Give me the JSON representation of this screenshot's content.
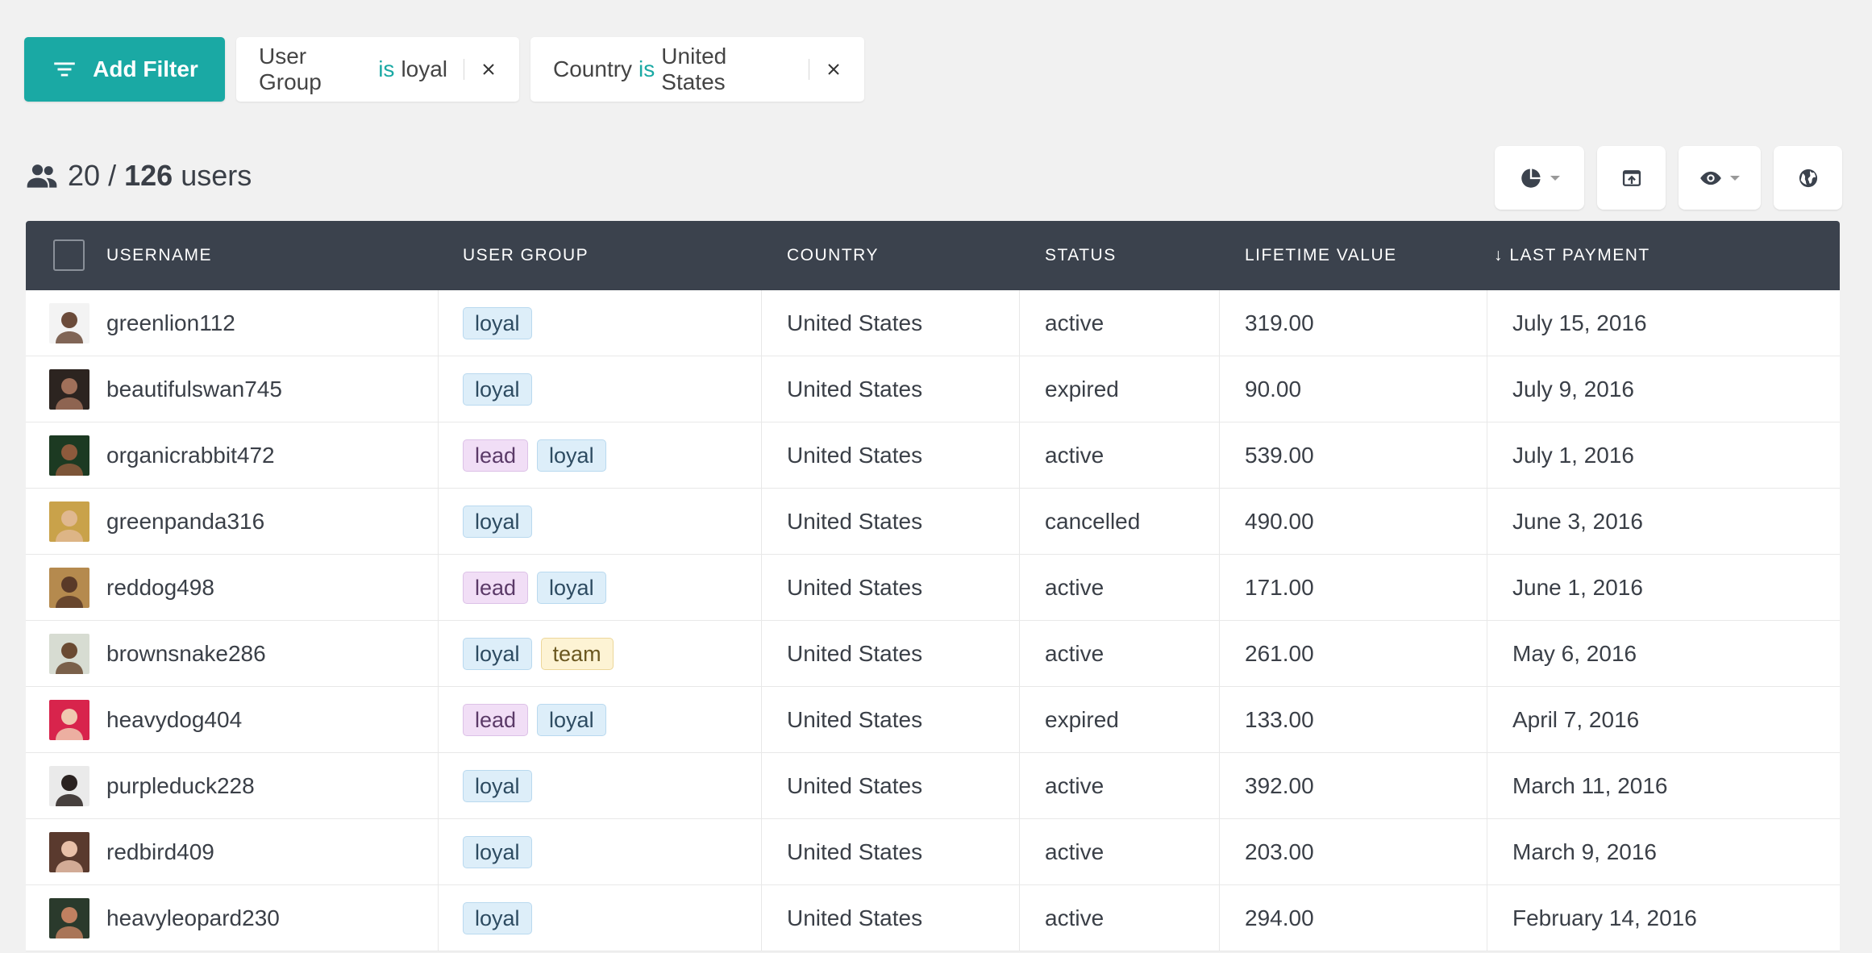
{
  "filters": {
    "add_label": "Add Filter",
    "chips": [
      {
        "field": "User Group",
        "op": "is",
        "value": "loyal"
      },
      {
        "field": "Country",
        "op": "is",
        "value": "United States"
      }
    ]
  },
  "count": {
    "shown": "20",
    "separator": "/",
    "total": "126",
    "unit": "users"
  },
  "toolbar": {
    "icons": [
      "pie-chart-icon",
      "export-icon",
      "eye-icon",
      "globe-icon"
    ]
  },
  "table": {
    "columns": {
      "username": "USERNAME",
      "group": "USER GROUP",
      "country": "COUNTRY",
      "status": "STATUS",
      "ltv": "LIFETIME VALUE",
      "payment": "↓ LAST PAYMENT"
    },
    "rows": [
      {
        "username": "greenlion112",
        "tags": [
          "loyal"
        ],
        "country": "United States",
        "status": "active",
        "ltv": "319.00",
        "payment": "July 15, 2016",
        "avatar_bg": "#f3f3f3",
        "avatar_fg": "#6b4b3a"
      },
      {
        "username": "beautifulswan745",
        "tags": [
          "loyal"
        ],
        "country": "United States",
        "status": "expired",
        "ltv": "90.00",
        "payment": "July 9, 2016",
        "avatar_bg": "#2c2420",
        "avatar_fg": "#a0705a"
      },
      {
        "username": "organicrabbit472",
        "tags": [
          "lead",
          "loyal"
        ],
        "country": "United States",
        "status": "active",
        "ltv": "539.00",
        "payment": "July 1, 2016",
        "avatar_bg": "#1c3a22",
        "avatar_fg": "#8d5a3c"
      },
      {
        "username": "greenpanda316",
        "tags": [
          "loyal"
        ],
        "country": "United States",
        "status": "cancelled",
        "ltv": "490.00",
        "payment": "June 3, 2016",
        "avatar_bg": "#c9a24a",
        "avatar_fg": "#e0b890"
      },
      {
        "username": "reddog498",
        "tags": [
          "lead",
          "loyal"
        ],
        "country": "United States",
        "status": "active",
        "ltv": "171.00",
        "payment": "June 1, 2016",
        "avatar_bg": "#b58a4e",
        "avatar_fg": "#5a3a28"
      },
      {
        "username": "brownsnake286",
        "tags": [
          "loyal",
          "team"
        ],
        "country": "United States",
        "status": "active",
        "ltv": "261.00",
        "payment": "May 6, 2016",
        "avatar_bg": "#d7dcd2",
        "avatar_fg": "#6a4a32"
      },
      {
        "username": "heavydog404",
        "tags": [
          "lead",
          "loyal"
        ],
        "country": "United States",
        "status": "expired",
        "ltv": "133.00",
        "payment": "April 7, 2016",
        "avatar_bg": "#d8244c",
        "avatar_fg": "#f0c8b0"
      },
      {
        "username": "purpleduck228",
        "tags": [
          "loyal"
        ],
        "country": "United States",
        "status": "active",
        "ltv": "392.00",
        "payment": "March 11, 2016",
        "avatar_bg": "#eaeaea",
        "avatar_fg": "#2a2220"
      },
      {
        "username": "redbird409",
        "tags": [
          "loyal"
        ],
        "country": "United States",
        "status": "active",
        "ltv": "203.00",
        "payment": "March 9, 2016",
        "avatar_bg": "#5a3a2e",
        "avatar_fg": "#e8c0a8"
      },
      {
        "username": "heavyleopard230",
        "tags": [
          "loyal"
        ],
        "country": "United States",
        "status": "active",
        "ltv": "294.00",
        "payment": "February 14, 2016",
        "avatar_bg": "#2a3a2c",
        "avatar_fg": "#c08060"
      }
    ]
  },
  "colors": {
    "accent": "#1aa9a4",
    "header_bg": "#3b424d",
    "page_bg": "#f1f1f1"
  }
}
